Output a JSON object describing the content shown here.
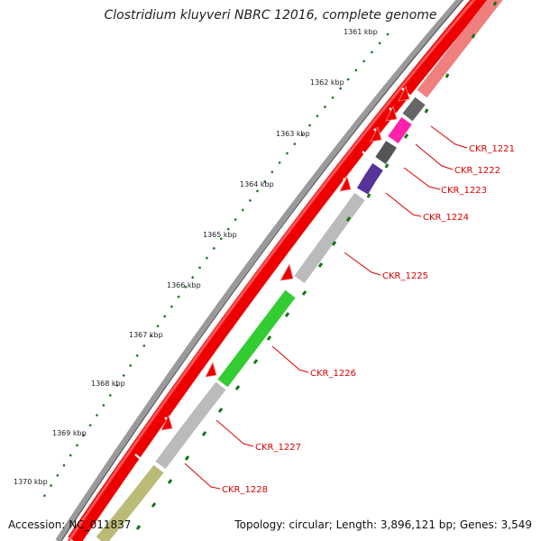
{
  "title": "Clostridium kluyveri NBRC 12016, complete genome",
  "footer": {
    "accession": "Accession: NC_011837",
    "summary": "Topology: circular; Length: 3,896,121 bp; Genes: 3,549"
  },
  "scale_labels": [
    "1361 kbp",
    "1362 kbp",
    "1363 kbp",
    "1364 kbp",
    "1365 kbp",
    "1366 kbp",
    "1367 kbp",
    "1368 kbp",
    "1369 kbp",
    "1370 kbp"
  ],
  "gene_labels": [
    "CKR_1221",
    "CKR_1222",
    "CKR_1223",
    "CKR_1224",
    "CKR_1225",
    "CKR_1226",
    "CKR_1227",
    "CKR_1228"
  ],
  "colors": {
    "backbone": "#8a8a8a",
    "gene_arrow": "#ee0000",
    "label": "#dd0000",
    "leader": "#dd0000",
    "scale_dot": "#227722",
    "tick": "#117711"
  }
}
